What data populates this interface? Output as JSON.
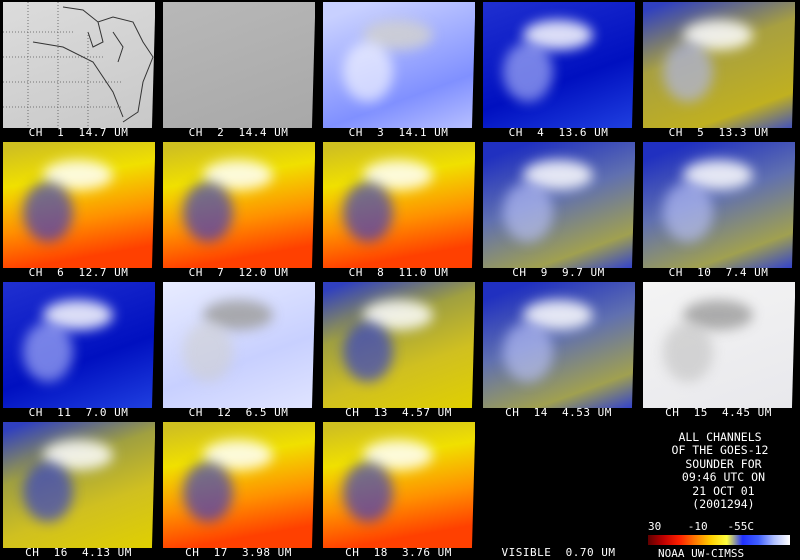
{
  "tiles": [
    {
      "label": "CH  1  14.7 UM",
      "scheme": "gray-map"
    },
    {
      "label": "CH  2  14.4 UM",
      "scheme": "gray"
    },
    {
      "label": "CH  3  14.1 UM",
      "scheme": "pale-blue"
    },
    {
      "label": "CH  4  13.6 UM",
      "scheme": "blue"
    },
    {
      "label": "CH  5  13.3 UM",
      "scheme": "olive"
    },
    {
      "label": "CH  6  12.7 UM",
      "scheme": "warm"
    },
    {
      "label": "CH  7  12.0 UM",
      "scheme": "warm"
    },
    {
      "label": "CH  8  11.0 UM",
      "scheme": "warm"
    },
    {
      "label": "CH  9  9.7 UM",
      "scheme": "blue-olive"
    },
    {
      "label": "CH  10  7.4 UM",
      "scheme": "blue-olive"
    },
    {
      "label": "CH  11  7.0 UM",
      "scheme": "blue"
    },
    {
      "label": "CH  12  6.5 UM",
      "scheme": "pale"
    },
    {
      "label": "CH  13  4.57 UM",
      "scheme": "olive-yellow"
    },
    {
      "label": "CH  14  4.53 UM",
      "scheme": "blue-olive"
    },
    {
      "label": "CH  15  4.45 UM",
      "scheme": "white"
    },
    {
      "label": "CH  16  4.13 UM",
      "scheme": "olive-yellow"
    },
    {
      "label": "CH  17  3.98 UM",
      "scheme": "warm"
    },
    {
      "label": "CH  18  3.76 UM",
      "scheme": "warm"
    },
    {
      "label": "VISIBLE  0.70 UM",
      "scheme": "black"
    }
  ],
  "info": {
    "lines": "ALL CHANNELS\nOF THE GOES-12\n SOUNDER FOR\n 09:46 UTC ON\n 21 OCT 01\n (2001294)",
    "scale": "30    -10   -55C",
    "credit": "NOAA UW-CIMSS"
  },
  "colors": {
    "background": "#000000",
    "label": "#ffffff"
  }
}
